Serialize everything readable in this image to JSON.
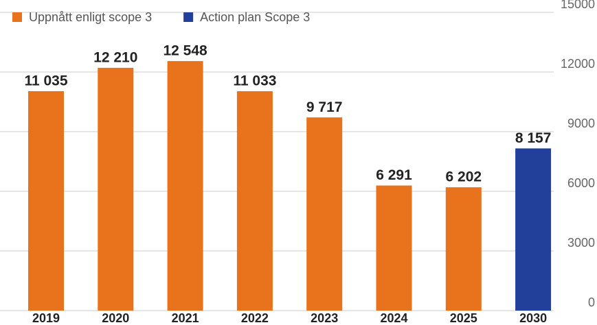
{
  "chart_data": {
    "type": "bar",
    "categories": [
      "2019",
      "2020",
      "2021",
      "2022",
      "2023",
      "2024",
      "2025",
      "2030"
    ],
    "series": [
      {
        "name": "Uppnått enligt scope 3",
        "color": "#e8731c",
        "values": [
          11035,
          12210,
          12548,
          11033,
          9717,
          6291,
          6202,
          null
        ],
        "value_labels": [
          "11 035",
          "12 210",
          "12 548",
          "11 033",
          "9 717",
          "6 291",
          "6 202",
          null
        ]
      },
      {
        "name": "Action plan Scope 3",
        "color": "#22409a",
        "values": [
          null,
          null,
          null,
          null,
          null,
          null,
          null,
          8157
        ],
        "value_labels": [
          null,
          null,
          null,
          null,
          null,
          null,
          null,
          "8 157"
        ]
      }
    ],
    "ylim": [
      0,
      15000
    ],
    "yticks": [
      0,
      3000,
      6000,
      9000,
      12000,
      15000
    ],
    "grid": true,
    "legend": "top"
  }
}
